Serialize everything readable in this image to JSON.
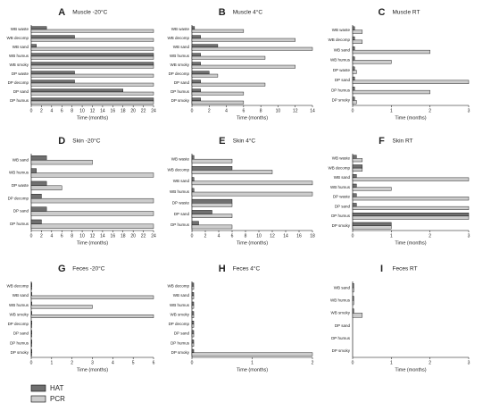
{
  "chart_data": [
    {
      "type": "bar",
      "orientation": "horizontal",
      "panel_label": "A",
      "title": "Muscle -20°C",
      "xlabel": "Time (months)",
      "categories": [
        "WB waste",
        "WB decomp",
        "WB sand",
        "WB humus",
        "WB smoky",
        "DP waste",
        "DP decomp",
        "DP sand",
        "DP humus"
      ],
      "series": [
        {
          "name": "HAT",
          "color": "#707070",
          "values": [
            3,
            8.5,
            1,
            24,
            24,
            8.5,
            8.5,
            18,
            24
          ]
        },
        {
          "name": "PCR",
          "color": "#cccccc",
          "values": [
            24,
            24,
            24,
            24,
            24,
            24,
            24,
            24,
            24
          ]
        }
      ],
      "xlim": [
        0,
        24
      ],
      "xticks": [
        0,
        2,
        4,
        6,
        8,
        10,
        12,
        14,
        16,
        18,
        20,
        22,
        24
      ]
    },
    {
      "type": "bar",
      "orientation": "horizontal",
      "panel_label": "B",
      "title": "Muscle 4°C",
      "xlabel": "Time (months)",
      "categories": [
        "WB waste",
        "WB decomp",
        "WB sand",
        "WB humus",
        "WB smoky",
        "DP decomp",
        "DP sand",
        "DP humus",
        "DP smoky"
      ],
      "series": [
        {
          "name": "HAT",
          "color": "#707070",
          "values": [
            0.3,
            1,
            3,
            1,
            1,
            2,
            1,
            1,
            1
          ]
        },
        {
          "name": "PCR",
          "color": "#cccccc",
          "values": [
            6,
            12,
            14,
            8.5,
            12,
            3,
            8.5,
            6,
            6
          ]
        }
      ],
      "xlim": [
        0,
        14
      ],
      "xticks": [
        0,
        2,
        4,
        6,
        8,
        10,
        12,
        14
      ]
    },
    {
      "type": "bar",
      "orientation": "horizontal",
      "panel_label": "C",
      "title": "Muscle RT",
      "xlabel": "Time (months)",
      "categories": [
        "WB waste",
        "WB decomp",
        "WB sand",
        "WB humus",
        "DP waste",
        "DP sand",
        "DP humus",
        "DP smoky"
      ],
      "series": [
        {
          "name": "HAT",
          "color": "#707070",
          "values": [
            0.05,
            0.05,
            0.05,
            0.05,
            0.05,
            0.05,
            0.05,
            0.05
          ]
        },
        {
          "name": "PCR",
          "color": "#cccccc",
          "values": [
            0.25,
            0.25,
            2,
            1,
            0.1,
            3,
            2,
            0.1
          ]
        }
      ],
      "xlim": [
        0,
        3
      ],
      "xticks": [
        0,
        1,
        2,
        3
      ]
    },
    {
      "type": "bar",
      "orientation": "horizontal",
      "panel_label": "D",
      "title": "Skin -20°C",
      "xlabel": "Time (months)",
      "categories": [
        "WB sand",
        "WB humus",
        "DP waste",
        "DP decomp",
        "DP sand",
        "DP humus"
      ],
      "series": [
        {
          "name": "HAT",
          "color": "#707070",
          "values": [
            3,
            1,
            3,
            2,
            3,
            2
          ]
        },
        {
          "name": "PCR",
          "color": "#cccccc",
          "values": [
            12,
            24,
            6,
            24,
            24,
            24
          ]
        }
      ],
      "xlim": [
        0,
        24
      ],
      "xticks": [
        0,
        2,
        4,
        6,
        8,
        10,
        12,
        14,
        16,
        18,
        20,
        22,
        24
      ]
    },
    {
      "type": "bar",
      "orientation": "horizontal",
      "panel_label": "E",
      "title": "Skin 4°C",
      "xlabel": "Time (months)",
      "categories": [
        "WB waste",
        "WB decomp",
        "WB sand",
        "WB humus",
        "DP waste",
        "DP sand",
        "DP humus"
      ],
      "series": [
        {
          "name": "HAT",
          "color": "#707070",
          "values": [
            0.3,
            6,
            0.3,
            0.3,
            6,
            3,
            1
          ]
        },
        {
          "name": "PCR",
          "color": "#cccccc",
          "values": [
            6,
            12,
            18,
            18,
            6,
            6,
            6
          ]
        }
      ],
      "xlim": [
        0,
        18
      ],
      "xticks": [
        0,
        2,
        4,
        6,
        8,
        10,
        12,
        14,
        16,
        18
      ]
    },
    {
      "type": "bar",
      "orientation": "horizontal",
      "panel_label": "F",
      "title": "Skin RT",
      "xlabel": "Time (months)",
      "categories": [
        "WB waste",
        "WB decomp",
        "WB sand",
        "WB humus",
        "DP waste",
        "DP sand",
        "DP humus",
        "DP smoky"
      ],
      "series": [
        {
          "name": "HAT",
          "color": "#707070",
          "values": [
            0.1,
            0.25,
            0.1,
            0.1,
            0.1,
            0.1,
            3,
            1
          ]
        },
        {
          "name": "PCR",
          "color": "#cccccc",
          "values": [
            0.25,
            0.25,
            3,
            1,
            3,
            3,
            3,
            1
          ]
        }
      ],
      "xlim": [
        0,
        3
      ],
      "xticks": [
        0,
        1,
        2,
        3
      ]
    },
    {
      "type": "bar",
      "orientation": "horizontal",
      "panel_label": "G",
      "title": "Feces -20°C",
      "xlabel": "Time (months)",
      "categories": [
        "WB decomp",
        "WB sand",
        "WB humus",
        "WB smoky",
        "DP decomp",
        "DP sand",
        "DP humus",
        "DP smoky"
      ],
      "series": [
        {
          "name": "HAT",
          "color": "#707070",
          "values": [
            0.03,
            0.03,
            0.03,
            0.03,
            0.03,
            0.03,
            0.03,
            0.03
          ]
        },
        {
          "name": "PCR",
          "color": "#cccccc",
          "values": [
            0.03,
            6,
            3,
            6,
            0.03,
            0.03,
            0.03,
            0.03
          ]
        }
      ],
      "xlim": [
        0,
        6
      ],
      "xticks": [
        0,
        1,
        2,
        3,
        4,
        5,
        6
      ]
    },
    {
      "type": "bar",
      "orientation": "horizontal",
      "panel_label": "H",
      "title": "Feces 4°C",
      "xlabel": "Time (months)",
      "categories": [
        "WB decomp",
        "WB sand",
        "WB humus",
        "WB smoky",
        "DP decomp",
        "DP sand",
        "DP humus",
        "DP smoky"
      ],
      "series": [
        {
          "name": "HAT",
          "color": "#707070",
          "values": [
            0.03,
            0.03,
            0.03,
            0.03,
            0.03,
            0.03,
            0.03,
            0.03
          ]
        },
        {
          "name": "PCR",
          "color": "#cccccc",
          "values": [
            0.03,
            0.03,
            0.03,
            0.03,
            0.03,
            0.03,
            0.03,
            2
          ]
        }
      ],
      "xlim": [
        0,
        2
      ],
      "xticks": [
        0,
        1,
        2
      ]
    },
    {
      "type": "bar",
      "orientation": "horizontal",
      "panel_label": "I",
      "title": "Feces RT",
      "xlabel": "Time (months)",
      "categories": [
        "WB sand",
        "WB humus",
        "WB smoky",
        "DP sand",
        "DP humus",
        "DP smoky"
      ],
      "series": [
        {
          "name": "HAT",
          "color": "#707070",
          "values": [
            0.03,
            0.03,
            0.03,
            0,
            0,
            0
          ]
        },
        {
          "name": "PCR",
          "color": "#cccccc",
          "values": [
            0.03,
            0.03,
            0.25,
            0,
            0,
            0
          ]
        }
      ],
      "xlim": [
        0,
        3
      ],
      "xticks": [
        0,
        1,
        2,
        3
      ]
    }
  ]
}
